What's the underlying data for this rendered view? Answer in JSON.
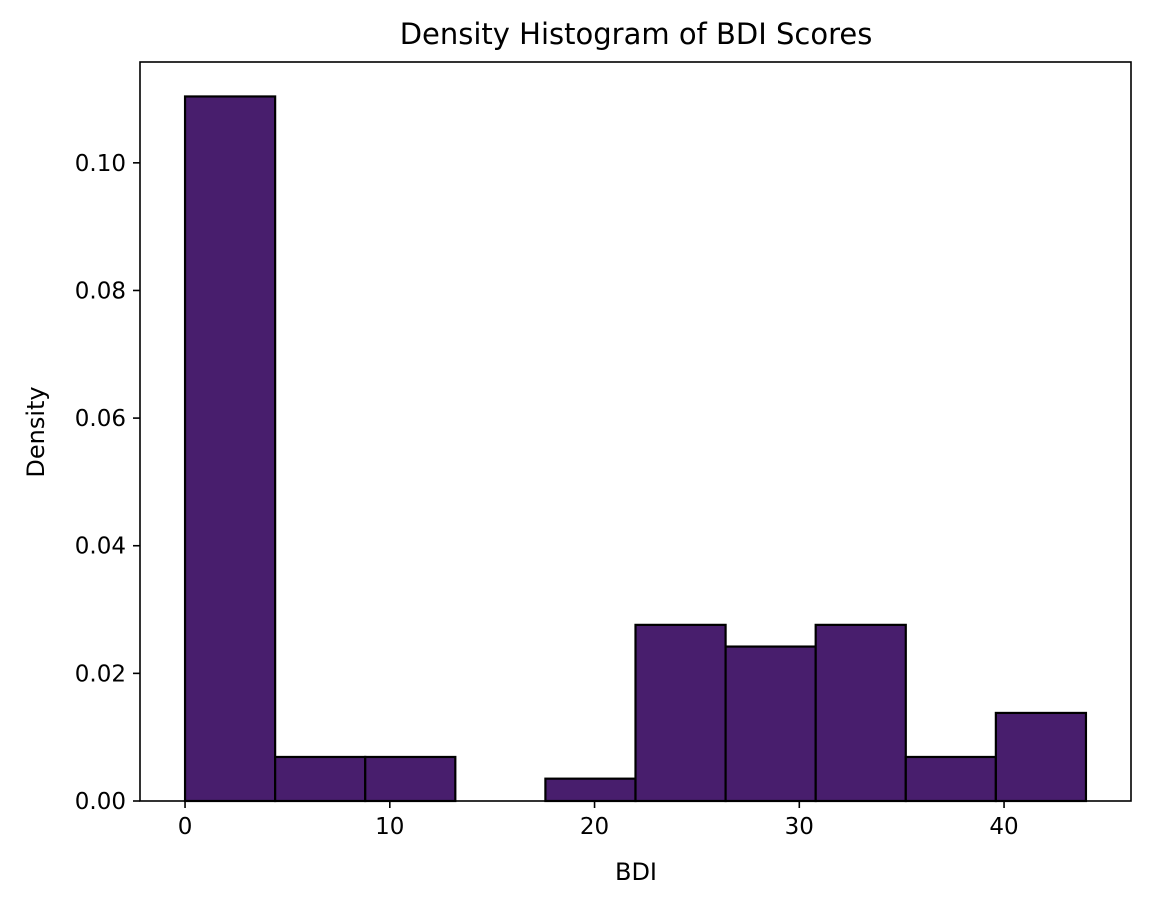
{
  "chart_data": {
    "type": "bar",
    "title": "Density Histogram of BDI Scores",
    "xlabel": "BDI",
    "ylabel": "Density",
    "xlim": [
      -2.2,
      46.2
    ],
    "ylim": [
      0,
      0.1158
    ],
    "bin_edges": [
      0,
      4.4,
      8.8,
      13.2,
      17.6,
      22.0,
      26.4,
      30.8,
      35.2,
      39.6,
      44.0
    ],
    "values": [
      0.1104,
      0.0069,
      0.0069,
      0.0,
      0.0035,
      0.0276,
      0.0242,
      0.0276,
      0.0069,
      0.0138
    ],
    "x_ticks": [
      0,
      10,
      20,
      30,
      40
    ],
    "x_tick_labels": [
      "0",
      "10",
      "20",
      "30",
      "40"
    ],
    "y_ticks": [
      0.0,
      0.02,
      0.04,
      0.06,
      0.08,
      0.1
    ],
    "y_tick_labels": [
      "0.00",
      "0.02",
      "0.04",
      "0.06",
      "0.08",
      "0.10"
    ],
    "bar_color": "#481e6d",
    "edge_color": "#000000",
    "grid": false,
    "legend": "none"
  }
}
